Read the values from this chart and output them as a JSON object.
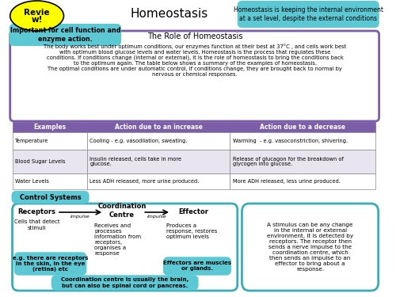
{
  "title": "Homeostasis",
  "header_box_text": "Homeostasis is keeping the internal environment\nat a set level, despite the external conditions",
  "important_box_text": "Important for cell function and\nenzyme action.",
  "role_title": "The Role of Homeostasis",
  "role_text": "The body works best under optimum conditions, our enzymes function at their best at 37°C , and cells work best\nwith optimum blood glucose levels and water levels. Homeostasis is the process that regulates these\nconditions. If conditions change (internal or external), it is the role of homeostasis to bring the conditions back\nto the optimum again. The table below shows a summary of the examples of homeostasis.\nThe optimal conditions are under automatic control, if conditions change, they are brought back to normal by\nnervous or chemical responses.",
  "table_headers": [
    "Examples",
    "Action due to an increase",
    "Action due to a decrease"
  ],
  "table_rows": [
    [
      "Temperature",
      "Cooling - e.g. vasodilation, sweating.",
      "Warming  - e.g. vasoconstriction, shivering."
    ],
    [
      "Blood Sugar Levels",
      "Insulin released, cells take in more\nglucose.",
      "Release of glucagon for the breakdown of\nglycogen into glucose."
    ],
    [
      "Water Levels",
      "Less ADH released, more urine produced.",
      "More ADH released, less urine produced."
    ]
  ],
  "control_title": "Control Systems",
  "receptors_label": "Receptors",
  "coord_label": "Coordination\nCentre",
  "effector_label": "Effector",
  "impulse_label1": "impulse",
  "impulse_label2": "impulse",
  "receptors_desc1": "Cells that detect\nstimuli",
  "receptors_desc2": "e.g. there are receptors\nin the skin, in the eye\n(retina) etc",
  "coord_desc": "Receives and\nprocesses\ninformation from\nreceptors,\norganises a\nresponse",
  "effector_desc1": "Produces a\nresponse, restores\noptimum levels",
  "effector_desc2": "Effectors are muscles\nor glands.",
  "bottom_box_text": "Coordination centre is usually the brain,\nbut can also be spinal cord or pancreas.",
  "stimulus_text": "A stimulus can be any change\nin the internal or external\nenvironment, it is detected by\nreceptors. The receptor then\nsends a nerve impulse to the\ncoordination centre, which\nthen sends an impulse to an\neffector to bring about a\nresponse.",
  "bg_color": "#ffffff",
  "yellow_color": "#ffff00",
  "purple_header": "#7b5ea7",
  "purple_light": "#c9b8e8",
  "teal_color": "#5bc8d4",
  "teal_dark": "#3aacb8",
  "table_alt": "#e8e4f0",
  "border_purple": "#7b5ea7",
  "border_teal": "#5bc8d4",
  "text_dark": "#000000",
  "text_white": "#ffffff"
}
